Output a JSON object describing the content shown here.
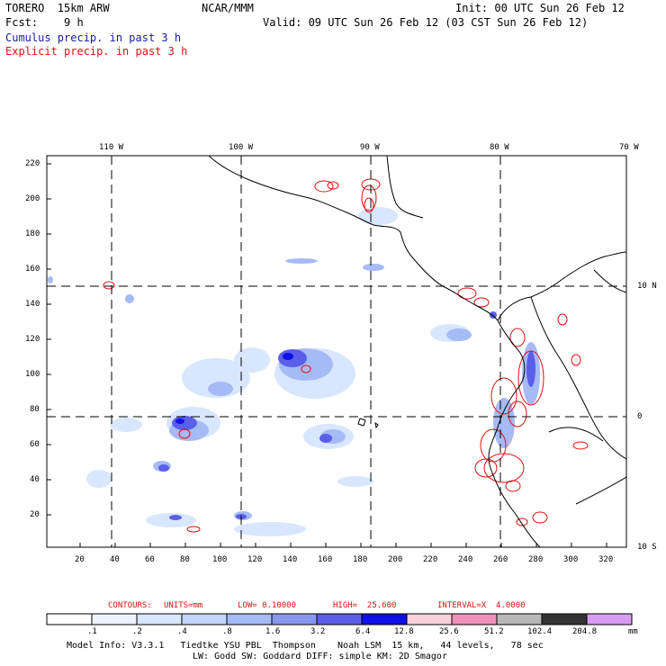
{
  "header": {
    "model": "TORERO  15km ARW",
    "org": "NCAR/MMM",
    "init": "Init: 00 UTC Sun 26 Feb 12",
    "fcst": "Fcst:    9 h",
    "valid": "Valid: 09 UTC Sun 26 Feb 12 (03 CST Sun 26 Feb 12)",
    "field1": "Cumulus precip. in past 3 h",
    "field2": "Explicit precip. in past 3 h",
    "field1_color": "#1a1aa6",
    "field2_color": "#e01010"
  },
  "map": {
    "lon_labels": [
      "110 W",
      "100 W",
      "90 W",
      "80 W",
      "70 W"
    ],
    "lat_labels": [
      "10 N",
      "0",
      "10 S"
    ],
    "y_ticks": [
      "220",
      "200",
      "180",
      "160",
      "140",
      "120",
      "100",
      "80",
      "60",
      "40",
      "20"
    ],
    "x_ticks": [
      "20",
      "40",
      "60",
      "80",
      "100",
      "120",
      "140",
      "160",
      "180",
      "200",
      "220",
      "240",
      "260",
      "280",
      "300",
      "320"
    ]
  },
  "contours": {
    "prefix": "CONTOURS:",
    "units": "UNITS=mm",
    "low": "LOW= 0.10000",
    "high": "HIGH=  25.600",
    "interval": "INTERVAL=X  4.0000"
  },
  "colorbar": {
    "labels": [
      ".1",
      ".2",
      ".4",
      ".8",
      "1.6",
      "3.2",
      "6.4",
      "12.8",
      "25.6",
      "51.2",
      "102.4",
      "204.8"
    ],
    "unit": "mm",
    "colors": [
      "#ffffff",
      "#eef4ff",
      "#d8e6ff",
      "#c2d6fb",
      "#a6baf5",
      "#8a97ef",
      "#5a5ee8",
      "#1010e8",
      "#fbd2dc",
      "#f290bc",
      "#b8b8b8",
      "#333333",
      "#d89cf2"
    ]
  },
  "footer": {
    "line1": "Model Info: V3.3.1   Tiedtke YSU PBL  Thompson    Noah LSM  15 km,   44 levels,   78 sec",
    "line2": "LW: Godd SW: Goddard DIFF: simple KM: 2D Smagor"
  }
}
